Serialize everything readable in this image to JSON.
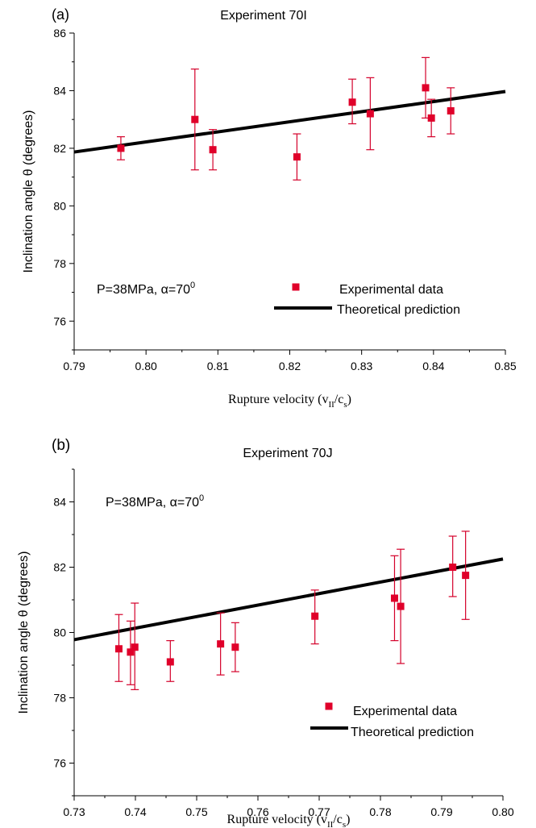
{
  "chart_data": [
    {
      "type": "scatter",
      "panel_label": "(a)",
      "title": "Experiment 70I",
      "xlabel": "Rupture velocity (v",
      "xlabel_sub1": "II",
      "xlabel_mid": "/c",
      "xlabel_sub2": "s",
      "xlabel_end": ")",
      "ylabel": "Inclination angle θ (degrees)",
      "annotation": "P=38MPa, α=70",
      "annotation_sup": "0",
      "xlim": [
        0.79,
        0.85
      ],
      "ylim": [
        75,
        86
      ],
      "xticks": [
        "0.79",
        "0.80",
        "0.81",
        "0.82",
        "0.83",
        "0.84",
        "0.85"
      ],
      "yticks": [
        "76",
        "78",
        "80",
        "82",
        "84",
        "86"
      ],
      "legend": {
        "markers": "Experimental data",
        "line": "Theoretical prediction",
        "position": "bottom-right"
      },
      "series": [
        {
          "name": "Experimental data",
          "points": [
            {
              "x": 0.7965,
              "y": 82.0,
              "err_low": 81.6,
              "err_high": 82.4
            },
            {
              "x": 0.8068,
              "y": 83.0,
              "err_low": 81.25,
              "err_high": 84.75
            },
            {
              "x": 0.8093,
              "y": 81.95,
              "err_low": 81.25,
              "err_high": 82.65
            },
            {
              "x": 0.821,
              "y": 81.7,
              "err_low": 80.9,
              "err_high": 82.5
            },
            {
              "x": 0.8287,
              "y": 83.6,
              "err_low": 82.85,
              "err_high": 84.4
            },
            {
              "x": 0.8312,
              "y": 83.2,
              "err_low": 81.95,
              "err_high": 84.45
            },
            {
              "x": 0.8389,
              "y": 84.1,
              "err_low": 83.05,
              "err_high": 85.15
            },
            {
              "x": 0.8397,
              "y": 83.05,
              "err_low": 82.4,
              "err_high": 83.7
            },
            {
              "x": 0.8424,
              "y": 83.3,
              "err_low": 82.5,
              "err_high": 84.1
            }
          ]
        },
        {
          "name": "Theoretical prediction",
          "type": "line",
          "x": [
            0.79,
            0.85
          ],
          "y": [
            81.87,
            83.97
          ]
        }
      ]
    },
    {
      "type": "scatter",
      "panel_label": "(b)",
      "title": "Experiment 70J",
      "xlabel": "Rupture velocity (v",
      "xlabel_sub1": "II",
      "xlabel_mid": "/c",
      "xlabel_sub2": "s",
      "xlabel_end": ")",
      "ylabel": "Inclination angle θ (degrees)",
      "annotation": "P=38MPa, α=70",
      "annotation_sup": "0",
      "xlim": [
        0.73,
        0.8
      ],
      "ylim": [
        75,
        85
      ],
      "xticks": [
        "0.73",
        "0.74",
        "0.75",
        "0.76",
        "0.77",
        "0.78",
        "0.79",
        "0.80"
      ],
      "yticks": [
        "76",
        "78",
        "80",
        "82",
        "84"
      ],
      "legend": {
        "markers": "Experimental data",
        "line": "Theoretical prediction",
        "position": "bottom-right"
      },
      "series": [
        {
          "name": "Experimental data",
          "points": [
            {
              "x": 0.7373,
              "y": 79.5,
              "err_low": 78.5,
              "err_high": 80.55
            },
            {
              "x": 0.7392,
              "y": 79.4,
              "err_low": 78.4,
              "err_high": 80.35
            },
            {
              "x": 0.7399,
              "y": 79.55,
              "err_low": 78.25,
              "err_high": 80.9
            },
            {
              "x": 0.7457,
              "y": 79.1,
              "err_low": 78.5,
              "err_high": 79.75
            },
            {
              "x": 0.7539,
              "y": 79.65,
              "err_low": 78.7,
              "err_high": 80.6
            },
            {
              "x": 0.7563,
              "y": 79.55,
              "err_low": 78.8,
              "err_high": 80.3
            },
            {
              "x": 0.7693,
              "y": 80.5,
              "err_low": 79.65,
              "err_high": 81.3
            },
            {
              "x": 0.7823,
              "y": 81.05,
              "err_low": 79.75,
              "err_high": 82.35
            },
            {
              "x": 0.7833,
              "y": 80.8,
              "err_low": 79.05,
              "err_high": 82.55
            },
            {
              "x": 0.7918,
              "y": 82.0,
              "err_low": 81.1,
              "err_high": 82.95
            },
            {
              "x": 0.7939,
              "y": 81.75,
              "err_low": 80.4,
              "err_high": 83.1
            }
          ]
        },
        {
          "name": "Theoretical prediction",
          "type": "line",
          "x": [
            0.73,
            0.8
          ],
          "y": [
            79.78,
            82.25
          ]
        }
      ]
    }
  ]
}
